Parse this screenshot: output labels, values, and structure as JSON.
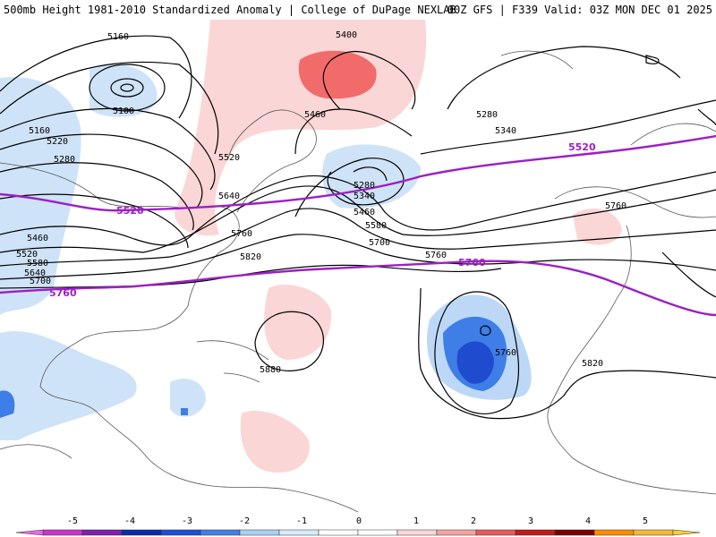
{
  "header": {
    "left": "500mb Height 1981-2010 Standardized Anomaly | College of DuPage NEXLAB",
    "right": "00Z GFS | F339 Valid: 03Z MON DEC 01 2025"
  },
  "contour_labels": [
    "5160",
    "5100",
    "5160",
    "5220",
    "5280",
    "5400",
    "5460",
    "5520",
    "5640",
    "5280",
    "5340",
    "5460",
    "5580",
    "5700",
    "5760",
    "5820",
    "5880",
    "5760",
    "5760",
    "5820",
    "5280",
    "5340",
    "5460",
    "5520",
    "5580",
    "5640",
    "5700",
    "5760"
  ],
  "highlight_labels": [
    "5520",
    "5520",
    "5760",
    "5760"
  ],
  "legend": {
    "ticks": [
      "-5",
      "-4",
      "-3",
      "-2",
      "-1",
      "0",
      "1",
      "2",
      "3",
      "4",
      "5"
    ],
    "colors": [
      "#cc33cc",
      "#7d1fb0",
      "#0a2aa6",
      "#1d4ed8",
      "#3f7fe8",
      "#a8d0f4",
      "#d8eafb",
      "#ffffff",
      "#ffffff",
      "#fbd6d6",
      "#f4a2a2",
      "#e85a5a",
      "#c21a1a",
      "#7a0000",
      "#ff8c00",
      "#f7b733"
    ]
  },
  "colors": {
    "height_contour": "#000000",
    "highlight_contour": "#9b1fc6",
    "coastline": "#555555"
  }
}
